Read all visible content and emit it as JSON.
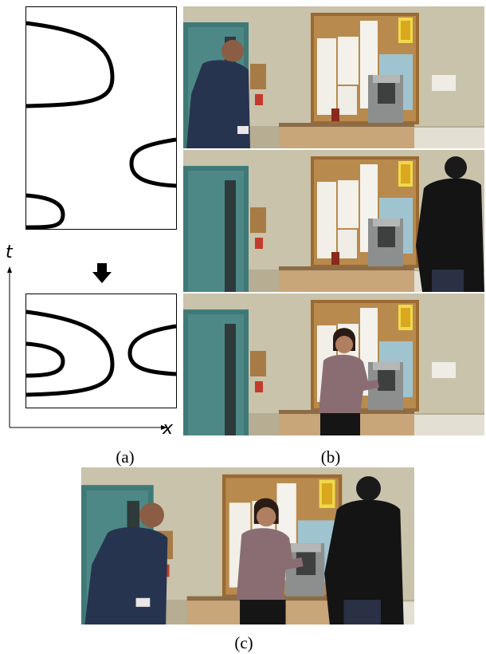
{
  "figure": {
    "panel_a": {
      "axis_t_label": "t",
      "axis_x_label": "x",
      "caption": "(a)"
    },
    "panel_b": {
      "caption": "(b)"
    },
    "panel_c": {
      "caption": "(c)"
    },
    "arrow_icon": "down-arrow-icon"
  }
}
